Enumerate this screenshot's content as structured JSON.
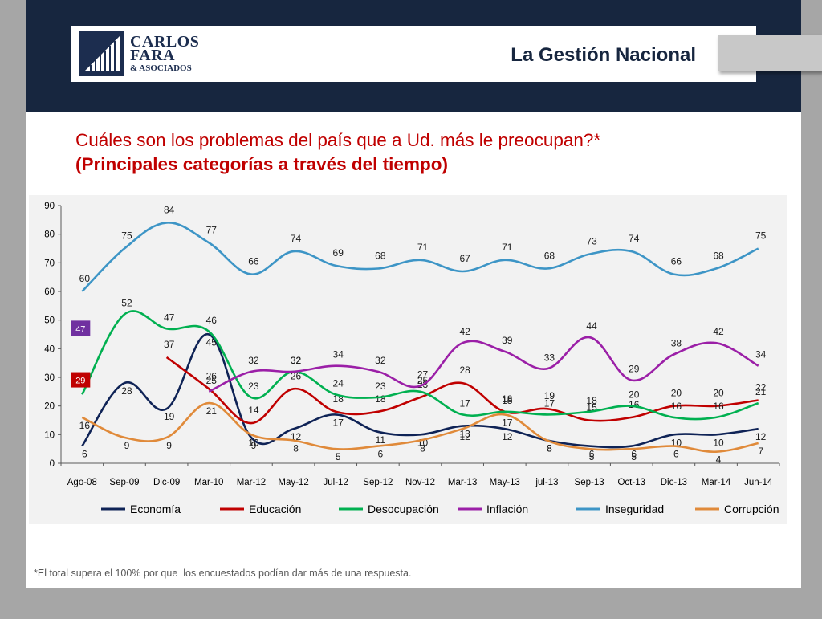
{
  "header": {
    "logo_line1": "CARLOS",
    "logo_line2": "FARA",
    "logo_line3": "& ASOCIADOS",
    "section_title": "La Gestión Nacional"
  },
  "question": {
    "line1": "Cuáles son los problemas del país que a Ud. más le preocupan?*",
    "line2": "(Principales categorías a través del tiempo)"
  },
  "footnote": "*El total supera el 100% por que  los encuestados podían dar más de una respuesta.",
  "chart_data": {
    "type": "line",
    "categories": [
      "Ago-08",
      "Sep-09",
      "Dic-09",
      "Mar-10",
      "Mar-12",
      "May-12",
      "Jul-12",
      "Sep-12",
      "Nov-12",
      "Mar-13",
      "May-13",
      "jul-13",
      "Sep-13",
      "Oct-13",
      "Dic-13",
      "Mar-14",
      "Jun-14"
    ],
    "ylim": [
      0,
      90
    ],
    "yticks": [
      0,
      10,
      20,
      30,
      40,
      50,
      60,
      70,
      80,
      90
    ],
    "legend_position": "bottom",
    "grid": false,
    "series": [
      {
        "name": "Economía",
        "color": "#0f2356",
        "values": [
          6,
          28,
          19,
          45,
          9,
          12,
          17,
          11,
          10,
          13,
          12,
          8,
          6,
          6,
          10,
          10,
          12
        ]
      },
      {
        "name": "Educación",
        "color": "#c00000",
        "values": [
          null,
          null,
          37,
          26,
          14,
          26,
          18,
          18,
          23,
          28,
          18,
          19,
          15,
          16,
          20,
          20,
          22
        ]
      },
      {
        "name": "Desocupación",
        "color": "#00b050",
        "values": [
          24,
          52,
          47,
          46,
          23,
          32,
          24,
          23,
          25,
          17,
          18,
          17,
          18,
          20,
          16,
          16,
          21
        ]
      },
      {
        "name": "Inflación",
        "color": "#9b1fa7",
        "values": [
          null,
          null,
          null,
          25,
          32,
          32,
          34,
          32,
          27,
          42,
          39,
          33,
          44,
          29,
          38,
          42,
          34
        ]
      },
      {
        "name": "Inseguridad",
        "color": "#3d95c6",
        "values": [
          60,
          75,
          84,
          77,
          66,
          74,
          69,
          68,
          71,
          67,
          71,
          68,
          73,
          74,
          66,
          68,
          75
        ]
      },
      {
        "name": "Corrupción",
        "color": "#e08a3a",
        "values": [
          16,
          9,
          9,
          21,
          10,
          8,
          5,
          6,
          8,
          12,
          17,
          8,
          5,
          5,
          6,
          4,
          7
        ]
      }
    ],
    "annotations": [
      {
        "text": "47",
        "value": 47,
        "category_index": 0,
        "color": "#7030a0"
      },
      {
        "text": "29",
        "value": 29,
        "category_index": 0,
        "color": "#c00000"
      }
    ]
  }
}
